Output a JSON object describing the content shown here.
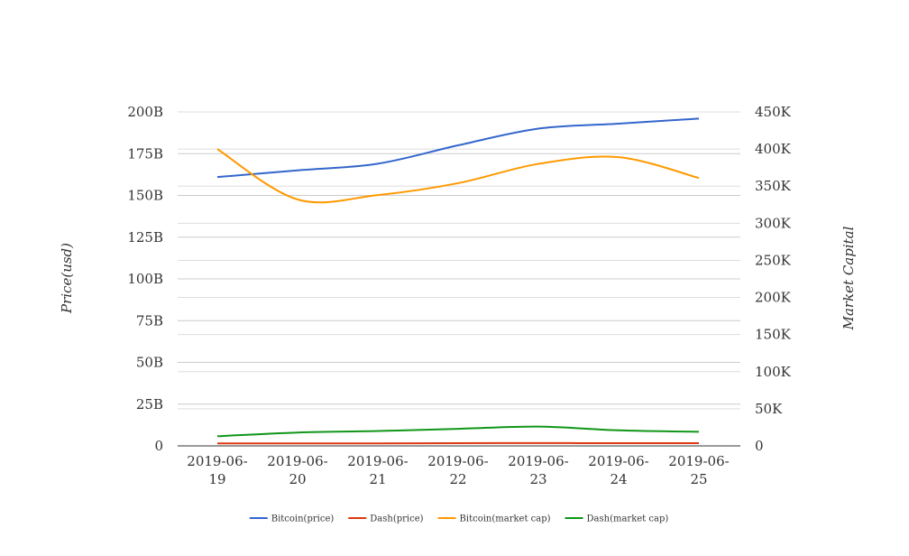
{
  "chart_data": {
    "type": "line",
    "title": "",
    "x": [
      "2019-06-19",
      "2019-06-20",
      "2019-06-21",
      "2019-06-22",
      "2019-06-23",
      "2019-06-24",
      "2019-06-25"
    ],
    "x_tick_labels": [
      [
        "2019-06-",
        "19"
      ],
      [
        "2019-06-",
        "20"
      ],
      [
        "2019-06-",
        "21"
      ],
      [
        "2019-06-",
        "22"
      ],
      [
        "2019-06-",
        "23"
      ],
      [
        "2019-06-",
        "24"
      ],
      [
        "2019-06-",
        "25"
      ]
    ],
    "left_axis": {
      "label": "Price(usd)",
      "ticks": [
        "0",
        "25B",
        "50B",
        "75B",
        "100B",
        "125B",
        "150B",
        "175B",
        "200B"
      ],
      "ylim": [
        0,
        200000000000
      ]
    },
    "right_axis": {
      "label": "Market Capital",
      "ticks": [
        "0",
        "50K",
        "100K",
        "150K",
        "200K",
        "250K",
        "300K",
        "350K",
        "400K",
        "450K"
      ],
      "ylim": [
        0,
        450000
      ]
    },
    "grid": true,
    "legend_position": "bottom",
    "smooth": true,
    "series": [
      {
        "name": "Bitcoin(price)",
        "axis": "left",
        "color": "#3366cc",
        "values": [
          161000000000,
          165000000000,
          169000000000,
          180000000000,
          190000000000,
          193000000000,
          196000000000
        ]
      },
      {
        "name": "Dash(price)",
        "axis": "left",
        "color": "#dc3912",
        "values": [
          1500000000,
          1500000000,
          1500000000,
          1600000000,
          1700000000,
          1600000000,
          1600000000
        ]
      },
      {
        "name": "Bitcoin(market cap)",
        "axis": "right",
        "color": "#ff9900",
        "values": [
          400000,
          332000,
          338000,
          354000,
          380000,
          389000,
          361000
        ]
      },
      {
        "name": "Dash(market cap)",
        "axis": "right",
        "color": "#109618",
        "values": [
          13000,
          18000,
          20000,
          23000,
          26000,
          21000,
          19000
        ]
      }
    ]
  }
}
